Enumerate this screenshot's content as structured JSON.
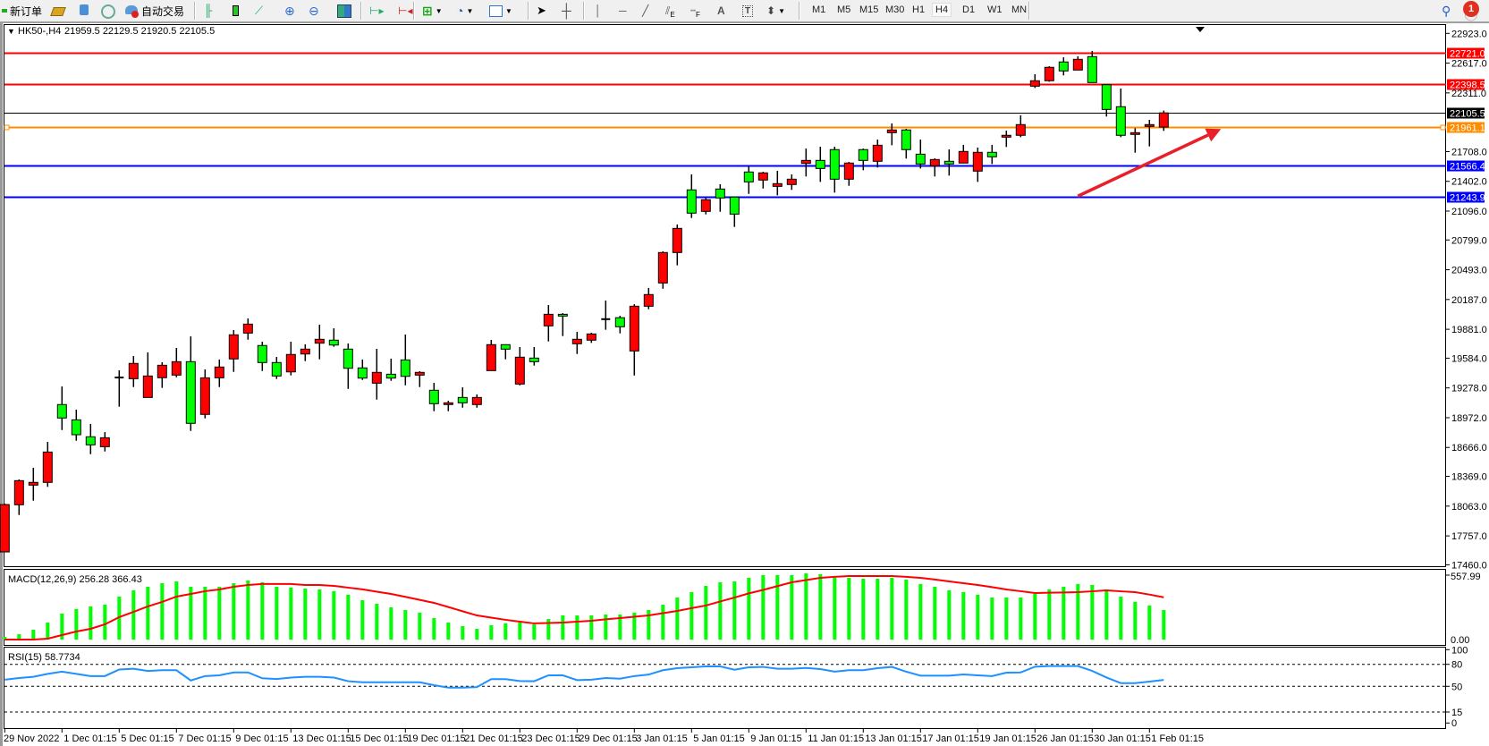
{
  "toolbar": {
    "new_order": "新订单",
    "auto_trading": "自动交易",
    "timeframes": [
      "M1",
      "M5",
      "M15",
      "M30",
      "H1",
      "H4",
      "D1",
      "W1",
      "MN"
    ],
    "active_timeframe": "H4",
    "notification_count": "1",
    "drawing_tool_labels": {
      "fibo": "E",
      "fibo_fan": "F",
      "text": "A",
      "label": "T"
    }
  },
  "chart": {
    "symbol": "HK50-,H4",
    "ohlc_text": "21959.5 22129.5 21920.5 22105.5"
  },
  "chart_data": {
    "type": "candlestick",
    "colors": {
      "bull": "#ff0000",
      "bear": "#00ff00",
      "outline": "#000000"
    },
    "price_range": [
      17460.0,
      22923.0
    ],
    "price_ticks": [
      "22923.0",
      "22617.0",
      "22311.0",
      "21708.0",
      "21402.0",
      "21096.0",
      "20799.0",
      "20493.0",
      "20187.0",
      "19881.0",
      "19584.0",
      "19278.0",
      "18972.0",
      "18666.0",
      "18369.0",
      "18063.0",
      "17757.0",
      "17460.0"
    ],
    "candles_ohlc": [
      [
        17592,
        18089,
        17592,
        18079
      ],
      [
        18077,
        18337,
        17972,
        18325
      ],
      [
        18279,
        18457,
        18119,
        18307
      ],
      [
        18307,
        18723,
        18261,
        18619
      ],
      [
        19107,
        19293,
        18845,
        18969
      ],
      [
        18950,
        19054,
        18735,
        18797
      ],
      [
        18776,
        18907,
        18597,
        18693
      ],
      [
        18674,
        18824,
        18625,
        18766
      ],
      [
        19382,
        19459,
        19085,
        19385
      ],
      [
        19373,
        19606,
        19287,
        19530
      ],
      [
        19180,
        19643,
        19180,
        19401
      ],
      [
        19383,
        19542,
        19278,
        19511
      ],
      [
        19410,
        19689,
        19388,
        19548
      ],
      [
        19548,
        19808,
        18836,
        18914
      ],
      [
        19006,
        19468,
        18965,
        19382
      ],
      [
        19382,
        19569,
        19287,
        19493
      ],
      [
        19576,
        19873,
        19443,
        19824
      ],
      [
        19842,
        19992,
        19774,
        19934
      ],
      [
        19714,
        19753,
        19452,
        19539
      ],
      [
        19539,
        19597,
        19370,
        19401
      ],
      [
        19443,
        19753,
        19407,
        19622
      ],
      [
        19627,
        19726,
        19554,
        19677
      ],
      [
        19738,
        19928,
        19572,
        19778
      ],
      [
        19769,
        19891,
        19701,
        19719
      ],
      [
        19677,
        19735,
        19268,
        19480
      ],
      [
        19484,
        19569,
        19360,
        19379
      ],
      [
        19327,
        19680,
        19158,
        19438
      ],
      [
        19419,
        19579,
        19351,
        19379
      ],
      [
        19566,
        19827,
        19305,
        19397
      ],
      [
        19410,
        19450,
        19287,
        19438
      ],
      [
        19254,
        19330,
        19039,
        19116
      ],
      [
        19107,
        19146,
        19039,
        19125
      ],
      [
        19180,
        19284,
        19075,
        19125
      ],
      [
        19107,
        19211,
        19075,
        19180
      ],
      [
        19456,
        19772,
        19456,
        19723
      ],
      [
        19723,
        19723,
        19572,
        19677
      ],
      [
        19318,
        19698,
        19305,
        19594
      ],
      [
        19585,
        19698,
        19508,
        19548
      ],
      [
        19916,
        20130,
        19756,
        20035
      ],
      [
        20035,
        20047,
        19811,
        20017
      ],
      [
        19732,
        19854,
        19627,
        19778
      ],
      [
        19769,
        19845,
        19741,
        19833
      ],
      [
        19980,
        20176,
        19876,
        19985
      ],
      [
        20000,
        20020,
        19839,
        19907
      ],
      [
        19658,
        20139,
        19406,
        20118
      ],
      [
        20118,
        20305,
        20087,
        20238
      ],
      [
        20357,
        20682,
        20298,
        20670
      ],
      [
        20670,
        20958,
        20538,
        20918
      ],
      [
        21314,
        21473,
        21025,
        21075
      ],
      [
        21093,
        21234,
        21062,
        21213
      ],
      [
        21323,
        21372,
        21089,
        21231
      ],
      [
        21240,
        21240,
        20933,
        21065
      ],
      [
        21498,
        21556,
        21273,
        21396
      ],
      [
        21415,
        21500,
        21328,
        21489
      ],
      [
        21350,
        21510,
        21258,
        21378
      ],
      [
        21369,
        21473,
        21314,
        21424
      ],
      [
        21586,
        21739,
        21452,
        21617
      ],
      [
        21617,
        21758,
        21396,
        21534
      ],
      [
        21728,
        21758,
        21286,
        21424
      ],
      [
        21424,
        21602,
        21356,
        21590
      ],
      [
        21728,
        21739,
        21516,
        21617
      ],
      [
        21608,
        21831,
        21544,
        21773
      ],
      [
        21902,
        21997,
        21773,
        21930
      ],
      [
        21930,
        21942,
        21636,
        21728
      ],
      [
        21681,
        21831,
        21534,
        21580
      ],
      [
        21562,
        21638,
        21452,
        21626
      ],
      [
        21608,
        21730,
        21461,
        21580
      ],
      [
        21590,
        21776,
        21590,
        21709
      ],
      [
        21507,
        21749,
        21396,
        21700
      ],
      [
        21700,
        21776,
        21580,
        21654
      ],
      [
        21856,
        21923,
        21755,
        21875
      ],
      [
        21875,
        22080,
        21856,
        21985
      ],
      [
        22380,
        22503,
        22362,
        22436
      ],
      [
        22436,
        22585,
        22426,
        22574
      ],
      [
        22629,
        22677,
        22491,
        22537
      ],
      [
        22546,
        22687,
        22546,
        22656
      ],
      [
        22684,
        22742,
        22417,
        22417
      ],
      [
        22395,
        22395,
        22068,
        22141
      ],
      [
        22169,
        22356,
        21856,
        21875
      ],
      [
        21884,
        21948,
        21696,
        21902
      ],
      [
        21967,
        22034,
        21761,
        21985
      ],
      [
        21959.5,
        22129.5,
        21920.5,
        22105.5
      ]
    ],
    "horizontal_lines": [
      {
        "price": 22721.0,
        "label": "22721.0",
        "color": "#ff0000"
      },
      {
        "price": 22398.5,
        "label": "22398.5",
        "color": "#ff0000"
      },
      {
        "price": 22105.5,
        "label": "22105.5",
        "color": "#000000"
      },
      {
        "price": 21961.1,
        "label": "21961.1",
        "color": "#ff8c00"
      },
      {
        "price": 21566.4,
        "label": "21566.4",
        "color": "#0000ff"
      },
      {
        "price": 21243.9,
        "label": "21243.9",
        "color": "#0000ff"
      }
    ],
    "arrow_annotation": {
      "color": "#e8202a",
      "from": {
        "candle_index": 75,
        "price": 21250
      },
      "to": {
        "candle_index": 85,
        "price": 21940
      }
    },
    "time_labels": [
      {
        "index": 0,
        "label": "29 Nov 2022"
      },
      {
        "index": 4,
        "label": "1 Dec 01:15"
      },
      {
        "index": 8,
        "label": "5 Dec 01:15"
      },
      {
        "index": 12,
        "label": "7 Dec 01:15"
      },
      {
        "index": 16,
        "label": "9 Dec 01:15"
      },
      {
        "index": 20,
        "label": "13 Dec 01:15"
      },
      {
        "index": 24,
        "label": "15 Dec 01:15"
      },
      {
        "index": 28,
        "label": "19 Dec 01:15"
      },
      {
        "index": 32,
        "label": "21 Dec 01:15"
      },
      {
        "index": 36,
        "label": "23 Dec 01:15"
      },
      {
        "index": 40,
        "label": "29 Dec 01:15"
      },
      {
        "index": 44,
        "label": "3 Jan 01:15"
      },
      {
        "index": 48,
        "label": "5 Jan 01:15"
      },
      {
        "index": 52,
        "label": "9 Jan 01:15"
      },
      {
        "index": 56,
        "label": "11 Jan 01:15"
      },
      {
        "index": 60,
        "label": "13 Jan 01:15"
      },
      {
        "index": 64,
        "label": "17 Jan 01:15"
      },
      {
        "index": 68,
        "label": "19 Jan 01:15"
      },
      {
        "index": 72,
        "label": "26 Jan 01:15"
      },
      {
        "index": 76,
        "label": "30 Jan 01:15"
      },
      {
        "index": 80,
        "label": "1 Feb 01:15"
      }
    ],
    "macd": {
      "label": "MACD(12,26,9) 256.28 366.43",
      "axis_max": "557.99",
      "axis_min": "0.00",
      "range": [
        0,
        557.99
      ],
      "histogram_color": "#00ff00",
      "signal_color": "#ff0000",
      "histogram": [
        23,
        47,
        85,
        147,
        225,
        264,
        287,
        302,
        372,
        426,
        457,
        488,
        504,
        457,
        457,
        457,
        488,
        512,
        496,
        457,
        450,
        442,
        434,
        419,
        388,
        341,
        310,
        279,
        256,
        233,
        186,
        147,
        116,
        93,
        124,
        140,
        147,
        132,
        178,
        209,
        209,
        209,
        217,
        217,
        233,
        256,
        302,
        364,
        411,
        465,
        496,
        504,
        535,
        558,
        558,
        558,
        574,
        566,
        535,
        535,
        527,
        527,
        535,
        519,
        481,
        457,
        426,
        411,
        388,
        364,
        364,
        364,
        395,
        434,
        457,
        481,
        473,
        434,
        372,
        326,
        295,
        256
      ],
      "signal": [
        0,
        0,
        0,
        8,
        39,
        70,
        93,
        132,
        194,
        240,
        287,
        326,
        372,
        395,
        419,
        434,
        457,
        473,
        481,
        481,
        481,
        473,
        473,
        465,
        450,
        435,
        415,
        395,
        370,
        344,
        318,
        282,
        245,
        209,
        190,
        171,
        155,
        140,
        143,
        147,
        155,
        163,
        175,
        186,
        198,
        209,
        229,
        248,
        272,
        295,
        330,
        364,
        400,
        430,
        463,
        496,
        515,
        535,
        543,
        550,
        550,
        550,
        550,
        543,
        535,
        520,
        504,
        488,
        473,
        454,
        434,
        419,
        403,
        406,
        408,
        411,
        418,
        426,
        418,
        411,
        390,
        366
      ]
    },
    "rsi": {
      "label": "RSI(15) 58.7734",
      "line_color": "#1e90ff",
      "levels": [
        80,
        50,
        15
      ],
      "axis_labels": [
        "100",
        "80",
        "50",
        "15",
        "0"
      ],
      "values": [
        59,
        61.4,
        63,
        67,
        70,
        67,
        64,
        64,
        73,
        74,
        71,
        72,
        72,
        58,
        64,
        65,
        69,
        69,
        61,
        60,
        62,
        63,
        63,
        62,
        57,
        55.6,
        55.6,
        55.6,
        55.6,
        55.6,
        51.6,
        48.3,
        48.3,
        49,
        59.8,
        59.8,
        57.3,
        57,
        65,
        65,
        58.5,
        59,
        61.3,
        60.5,
        64,
        66,
        72,
        74.8,
        76,
        77.2,
        77.2,
        72.7,
        76,
        76.5,
        74,
        74,
        75,
        73.5,
        70,
        72,
        72,
        74.8,
        76.5,
        70,
        64.6,
        64.6,
        64.6,
        66.2,
        65,
        64,
        68.6,
        69,
        76.8,
        77.6,
        77.6,
        77.6,
        71,
        62,
        54.4,
        54.4,
        56.5,
        58.77
      ]
    }
  }
}
